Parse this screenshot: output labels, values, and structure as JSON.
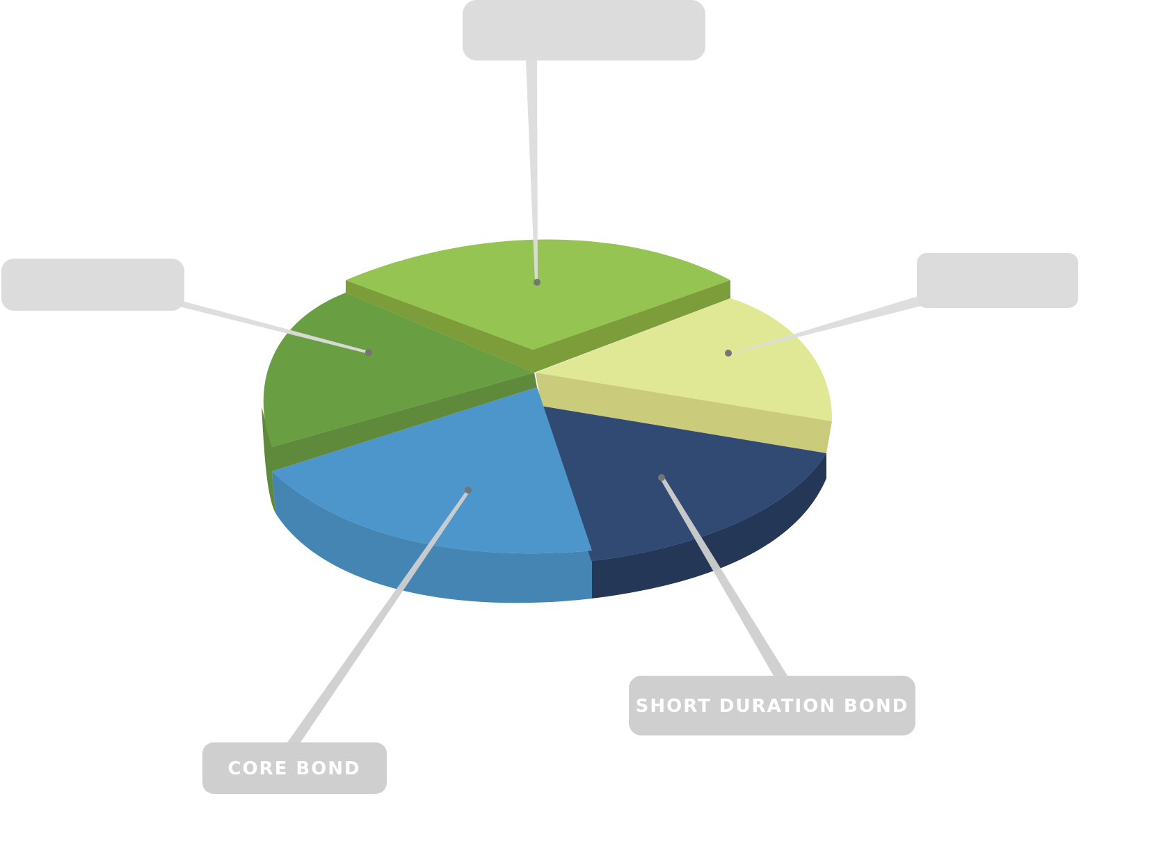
{
  "chart_data": {
    "type": "pie",
    "style": "3d-exploded",
    "title": "",
    "slices": [
      {
        "id": "top-slice",
        "label": "",
        "value": 22,
        "color": "#95c452",
        "side_color": "#7d9d3b",
        "inner_color": "#6b8236"
      },
      {
        "id": "right-slice",
        "label": "",
        "value": 17,
        "color": "#e0e896",
        "side_color": "#cacc7b",
        "inner_color": "#cacc7b"
      },
      {
        "id": "short-duration-bond-slice",
        "label": "SHORT DURATION BOND",
        "value": 23,
        "color": "#314a73",
        "side_color": "#243757",
        "inner_color": "#243757"
      },
      {
        "id": "core-bond-slice",
        "label": "CORE BOND",
        "value": 22,
        "color": "#4d96cb",
        "side_color": "#4585b3",
        "inner_color": "#4585b3"
      },
      {
        "id": "left-slice",
        "label": "",
        "value": 16,
        "color": "#699e42",
        "side_color": "#5f8a3c",
        "inner_color": "#5a7f35"
      }
    ],
    "callout_color": "#dcdcdc",
    "callout_color_labeled": "#cfcfcf",
    "label_color": "#ffffff",
    "marker_color": "#757575"
  }
}
